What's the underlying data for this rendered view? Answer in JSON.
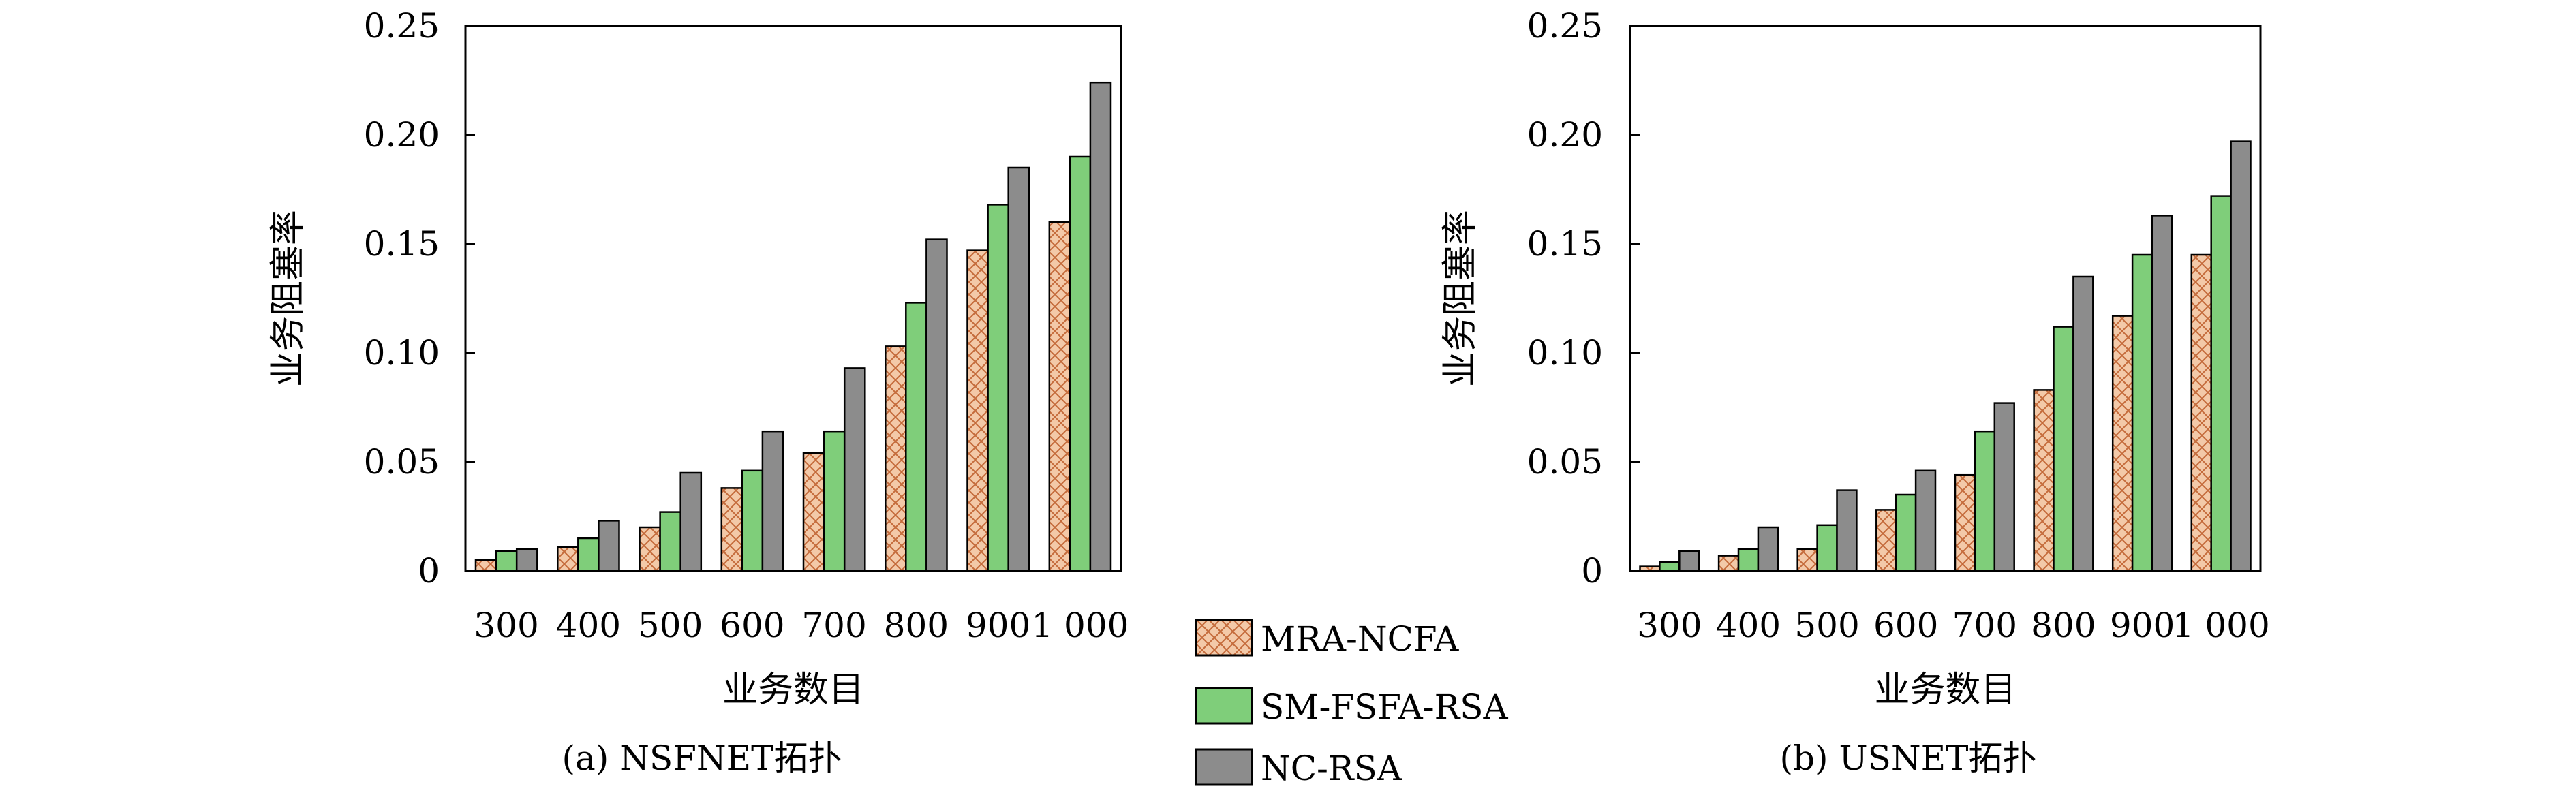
{
  "chart_data": [
    {
      "type": "bar",
      "caption": "(a) NSFNET拓扑",
      "xlabel": "业务数目",
      "ylabel": "业务阻塞率",
      "ylim": [
        0,
        0.25
      ],
      "yticks": [
        "0",
        "0.05",
        "0.10",
        "0.15",
        "0.20",
        "0.25"
      ],
      "categories": [
        "300",
        "400",
        "500",
        "600",
        "700",
        "800",
        "900",
        "1 000"
      ],
      "series": [
        {
          "name": "MRA-NCFA",
          "values": [
            0.005,
            0.011,
            0.02,
            0.038,
            0.054,
            0.103,
            0.147,
            0.16
          ]
        },
        {
          "name": "SM-FSFA-RSA",
          "values": [
            0.009,
            0.015,
            0.027,
            0.046,
            0.064,
            0.123,
            0.168,
            0.19
          ]
        },
        {
          "name": "NC-RSA",
          "values": [
            0.01,
            0.023,
            0.045,
            0.064,
            0.093,
            0.152,
            0.185,
            0.224
          ]
        }
      ]
    },
    {
      "type": "bar",
      "caption": "(b) USNET拓扑",
      "xlabel": "业务数目",
      "ylabel": "业务阻塞率",
      "ylim": [
        0,
        0.25
      ],
      "yticks": [
        "0",
        "0.05",
        "0.10",
        "0.15",
        "0.20",
        "0.25"
      ],
      "categories": [
        "300",
        "400",
        "500",
        "600",
        "700",
        "800",
        "900",
        "1 000"
      ],
      "series": [
        {
          "name": "MRA-NCFA",
          "values": [
            0.002,
            0.007,
            0.01,
            0.028,
            0.044,
            0.083,
            0.117,
            0.145
          ]
        },
        {
          "name": "SM-FSFA-RSA",
          "values": [
            0.004,
            0.01,
            0.021,
            0.035,
            0.064,
            0.112,
            0.145,
            0.172
          ]
        },
        {
          "name": "NC-RSA",
          "values": [
            0.009,
            0.02,
            0.037,
            0.046,
            0.077,
            0.135,
            0.163,
            0.197
          ]
        }
      ]
    }
  ],
  "legend": {
    "placement": "bottom-center",
    "items": [
      {
        "label": "MRA-NCFA",
        "style": "crosshatch",
        "color": "#f3c9a8",
        "hatch": "#c46a3a"
      },
      {
        "label": "SM-FSFA-RSA",
        "style": "solid",
        "color": "#7fce7a"
      },
      {
        "label": "NC-RSA",
        "style": "solid",
        "color": "#8c8c8c"
      }
    ]
  },
  "colors": {
    "mra": "#f3c9a8",
    "mra_hatch": "#c46a3a",
    "sm": "#7fce7a",
    "nc": "#8c8c8c"
  }
}
